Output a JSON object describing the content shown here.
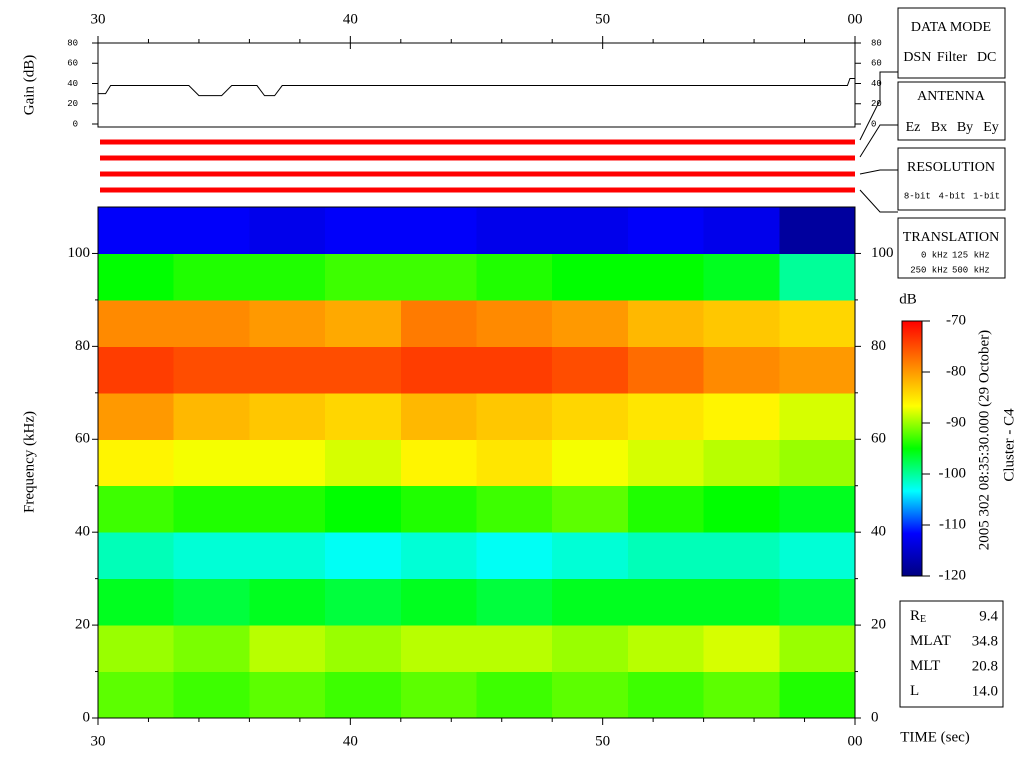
{
  "chart_data": {
    "type": "heatmap",
    "xlabel": "TIME (sec)",
    "ylabel": "Frequency (kHz)",
    "xlim": [
      30,
      60
    ],
    "xticks": [
      30,
      40,
      50,
      {
        "value": 60,
        "label": "00"
      }
    ],
    "xminorticks": [
      32,
      34,
      36,
      38,
      42,
      44,
      46,
      48,
      52,
      54,
      56,
      58
    ],
    "ylim": [
      0,
      110
    ],
    "yticks": [
      0,
      20,
      40,
      60,
      80,
      100
    ],
    "yminorticks": [
      10,
      30,
      50,
      70,
      90
    ],
    "xbins": [
      30,
      33,
      36,
      39,
      42,
      45,
      48,
      51,
      54,
      57,
      60
    ],
    "ybins": [
      0,
      10,
      20,
      30,
      40,
      50,
      60,
      70,
      80,
      90,
      100,
      110
    ],
    "z": [
      [
        -92,
        -93,
        -92,
        -93,
        -92,
        -93,
        -92,
        -93,
        -92,
        -94
      ],
      [
        -90,
        -91,
        -89,
        -90,
        -89,
        -89,
        -90,
        -89,
        -88,
        -90
      ],
      [
        -96,
        -97,
        -96,
        -97,
        -96,
        -97,
        -96,
        -96,
        -96,
        -97
      ],
      [
        -101,
        -102,
        -102,
        -103,
        -102,
        -103,
        -102,
        -101,
        -101,
        -102
      ],
      [
        -93,
        -94,
        -94,
        -95,
        -94,
        -93,
        -92,
        -94,
        -95,
        -96
      ],
      [
        -86,
        -87,
        -87,
        -88,
        -86,
        -85,
        -87,
        -88,
        -89,
        -90
      ],
      [
        -80,
        -82,
        -83,
        -84,
        -82,
        -83,
        -84,
        -85,
        -86,
        -88
      ],
      [
        -74,
        -75,
        -75,
        -75,
        -74,
        -74,
        -75,
        -77,
        -79,
        -80
      ],
      [
        -79,
        -79,
        -80,
        -81,
        -78,
        -79,
        -80,
        -82,
        -83,
        -84
      ],
      [
        -95,
        -94,
        -94,
        -93,
        -93,
        -94,
        -95,
        -95,
        -96,
        -100
      ],
      [
        -112,
        -112,
        -113,
        -112,
        -112,
        -113,
        -113,
        -112,
        -113,
        -118
      ]
    ],
    "zlabel": "dB",
    "zlim": [
      -120,
      -70
    ],
    "zticks": [
      -70,
      -80,
      -90,
      -100,
      -110,
      -120
    ],
    "colormap": [
      "#000080",
      "#0000ff",
      "#00ffff",
      "#00ff00",
      "#ffff00",
      "#ff8000",
      "#ff0000"
    ],
    "gain": {
      "ylabel": "Gain (dB)",
      "ylim": [
        0,
        80
      ],
      "yticks": [
        0,
        20,
        40,
        60,
        80
      ],
      "x": [
        30,
        30.3,
        30.5,
        33.6,
        34,
        34.9,
        35.3,
        36.3,
        36.6,
        37,
        37.3,
        59.7,
        59.8,
        60
      ],
      "values": [
        30,
        30,
        38,
        38,
        28,
        28,
        38,
        38,
        28,
        28,
        38,
        38,
        45,
        45
      ],
      "color": "#000000"
    },
    "side_title": "2005 302 08:35:30.000 (29 October)",
    "spacecraft": "Cluster - C4"
  },
  "panels": [
    {
      "title": "DATA MODE",
      "items": [
        {
          "text": "DSN",
          "color": "#ff0000"
        },
        {
          "text": "Filter",
          "color": "#00c000"
        },
        {
          "text": "DC",
          "color": "#0000ff"
        }
      ]
    },
    {
      "title": "ANTENNA",
      "items": [
        {
          "text": "Ez",
          "color": "#ff0000"
        },
        {
          "text": "Bx",
          "color": "#00c000"
        },
        {
          "text": "By",
          "color": "#0000ff"
        },
        {
          "text": "Ey",
          "color": "#000000"
        }
      ]
    },
    {
      "title": "RESOLUTION",
      "items": [
        {
          "text": "8-bit",
          "color": "#ff0000"
        },
        {
          "text": "4-bit",
          "color": "#00c000"
        },
        {
          "text": "1-bit",
          "color": "#0000ff"
        }
      ]
    },
    {
      "title": "TRANSLATION",
      "items": [
        {
          "text": "0 kHz",
          "color": "#ff0000"
        },
        {
          "text": "125 kHz",
          "color": "#00c000"
        },
        {
          "text": "250 kHz",
          "color": "#0000ff"
        },
        {
          "text": "500 kHz",
          "color": "#000000"
        }
      ]
    }
  ],
  "info": [
    {
      "label": "R",
      "sub": "E",
      "value": "9.4"
    },
    {
      "label": "MLAT",
      "value": "34.8"
    },
    {
      "label": "MLT",
      "value": "20.8"
    },
    {
      "label": "L",
      "value": "14.0"
    }
  ]
}
